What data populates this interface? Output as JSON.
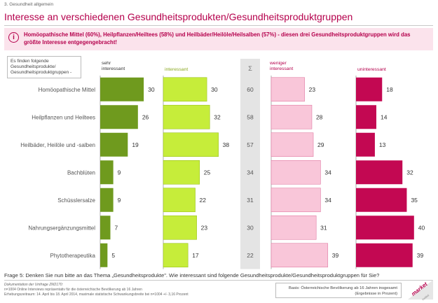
{
  "header": {
    "section": "3. Gesundheit allgemein",
    "title": "Interesse an verschiedenen Gesundheitsprodukten/Gesundheitsproduktgruppen"
  },
  "banner": {
    "icon": "info-icon",
    "glyph": "i",
    "text": "Homöopathische Mittel (60%), Heilpflanzen/Heiltees (58%) und Heilbäder/Heilöle/Heilsalben (57%) - diesen drei Gesundheitsproduktgruppen wird das größte Interesse entgegengebracht!"
  },
  "legend_box": {
    "line1": "Es finden folgende",
    "line2": "Gesundheitsprodukte/",
    "line3": "Gesundheitsproduktgruppen -"
  },
  "chart_data": {
    "type": "bar",
    "categories": [
      "Homöopathische Mittel",
      "Heilpflanzen und Heiltees",
      "Heilbäder, Heilöle und -salben",
      "Bachblüten",
      "Schüsslersalze",
      "Nahrungsergänzungsmittel",
      "Phytotherapeutika"
    ],
    "series": [
      {
        "name": "sehr interessant",
        "color": "#6f9a1e",
        "values": [
          30,
          26,
          19,
          9,
          9,
          7,
          5
        ]
      },
      {
        "name": "interessant",
        "color": "#c6ed3a",
        "values": [
          30,
          32,
          38,
          25,
          22,
          23,
          17
        ]
      },
      {
        "name": "Σ",
        "color": "#e4e4e4",
        "values": [
          60,
          58,
          57,
          34,
          31,
          30,
          22
        ]
      },
      {
        "name": "weniger interessant",
        "color": "#f9c6d9",
        "values": [
          23,
          28,
          29,
          34,
          34,
          31,
          39
        ]
      },
      {
        "name": "uninteressant",
        "color": "#c30852",
        "values": [
          18,
          14,
          13,
          32,
          35,
          40,
          39
        ]
      }
    ],
    "unit": "%"
  },
  "footer": {
    "question": "Frage 5:  Denken Sie nun bitte an das Thema „Gesundheitsprodukte\". Wie interessant sind folgende Gesundheitsprodukte/Gesundheitsproduktgruppen für Sie?",
    "doc_title": "Dokumentation der Umfrage ZM2170:",
    "doc_line1": "n=1004 Online Interviews repräsentativ für die österreichische Bevölkerung ab 16 Jahren",
    "doc_line2": "Erhebungszeitraum: 14. April bis 18. April 2014, maximale statistische Schwankungsbreite bei n=1004 +/- 3,16 Prozent",
    "basis_line1": "Basis: Österreichische Bevölkerung ab 16 Jahren insgesamt",
    "basis_line2": "(Ergebnisse in Prozent)",
    "logo_line1": "market",
    "logo_line2": "institut"
  }
}
